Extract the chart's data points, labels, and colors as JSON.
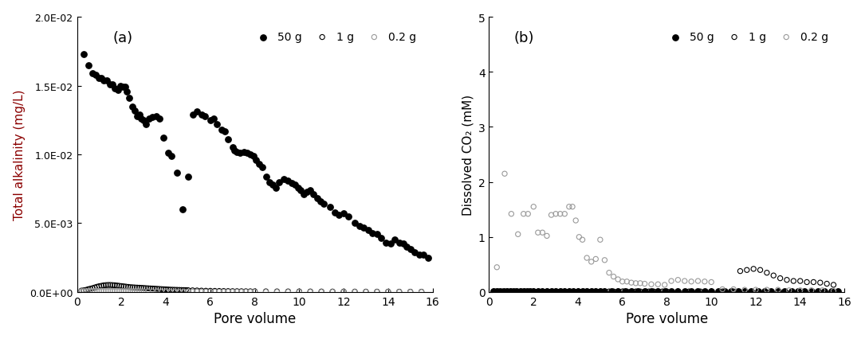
{
  "panel_a_label": "(a)",
  "panel_b_label": "(b)",
  "xlabel": "Pore volume",
  "ylabel_a": "Total alkalinity (mg/L)",
  "ylabel_b": "Dissolved CO₂ (mM)",
  "legend_labels": [
    "50 g",
    "1 g",
    "0.2 g"
  ],
  "xlim": [
    0,
    16
  ],
  "ylim_a": [
    0,
    0.02
  ],
  "ylim_b": [
    0,
    5
  ],
  "yticks_a": [
    0.0,
    0.005,
    0.01,
    0.015,
    0.02
  ],
  "ytick_labels_a": [
    "0.0E+00",
    "5.0E-03",
    "1.0E-02",
    "1.5E-02",
    "2.0E-02"
  ],
  "yticks_b": [
    0,
    1,
    2,
    3,
    4,
    5
  ],
  "a_50g_x": [
    0.3,
    0.5,
    0.7,
    0.85,
    1.0,
    1.1,
    1.2,
    1.35,
    1.5,
    1.6,
    1.7,
    1.85,
    1.95,
    2.05,
    2.15,
    2.25,
    2.35,
    2.5,
    2.6,
    2.7,
    2.8,
    2.9,
    3.0,
    3.1,
    3.25,
    3.4,
    3.55,
    3.7,
    3.9,
    4.1,
    4.25,
    4.5,
    4.75,
    5.0,
    5.2,
    5.4,
    5.6,
    5.75,
    6.0,
    6.15,
    6.3,
    6.5,
    6.65,
    6.8,
    7.0,
    7.1,
    7.2,
    7.35,
    7.5,
    7.65,
    7.8,
    7.95,
    8.05,
    8.2,
    8.35,
    8.5,
    8.65,
    8.8,
    8.95,
    9.1,
    9.3,
    9.5,
    9.65,
    9.8,
    9.95,
    10.05,
    10.2,
    10.35,
    10.5,
    10.65,
    10.8,
    10.95,
    11.1,
    11.4,
    11.6,
    11.8,
    12.0,
    12.2,
    12.5,
    12.7,
    12.9,
    13.1,
    13.3,
    13.5,
    13.7,
    13.9,
    14.1,
    14.3,
    14.5,
    14.7,
    14.85,
    15.0,
    15.2,
    15.4,
    15.6,
    15.8
  ],
  "a_50g_y": [
    0.0173,
    0.0165,
    0.0159,
    0.0158,
    0.01555,
    0.01555,
    0.0154,
    0.0154,
    0.0151,
    0.0151,
    0.0148,
    0.0147,
    0.015,
    0.0149,
    0.0149,
    0.0146,
    0.0141,
    0.0135,
    0.0132,
    0.0128,
    0.0129,
    0.0126,
    0.0125,
    0.0122,
    0.0126,
    0.0127,
    0.0128,
    0.0126,
    0.0112,
    0.0101,
    0.0099,
    0.0087,
    0.006,
    0.0084,
    0.0129,
    0.0131,
    0.0129,
    0.0128,
    0.0125,
    0.0126,
    0.0122,
    0.0118,
    0.0117,
    0.0111,
    0.0105,
    0.0103,
    0.0102,
    0.0101,
    0.0102,
    0.0101,
    0.01,
    0.0099,
    0.0096,
    0.0093,
    0.0091,
    0.0084,
    0.008,
    0.0078,
    0.0076,
    0.008,
    0.0082,
    0.0081,
    0.0079,
    0.0078,
    0.0076,
    0.0074,
    0.0071,
    0.0073,
    0.0074,
    0.0071,
    0.0068,
    0.0066,
    0.0064,
    0.0062,
    0.0058,
    0.0056,
    0.0057,
    0.0055,
    0.005,
    0.0048,
    0.0047,
    0.0045,
    0.0043,
    0.0042,
    0.0039,
    0.0036,
    0.0035,
    0.0038,
    0.0036,
    0.0035,
    0.0033,
    0.0031,
    0.0029,
    0.0027,
    0.0027,
    0.0025
  ],
  "a_1g_x": [
    0.2,
    0.3,
    0.4,
    0.5,
    0.6,
    0.7,
    0.8,
    0.9,
    1.0,
    1.1,
    1.2,
    1.3,
    1.4,
    1.5,
    1.6,
    1.7,
    1.8,
    1.9,
    2.0,
    2.1,
    2.2,
    2.3,
    2.4,
    2.5,
    2.6,
    2.7,
    2.8,
    2.9,
    3.0,
    3.1,
    3.2,
    3.3,
    3.4,
    3.5,
    3.6,
    3.7,
    3.8,
    3.9,
    4.0,
    4.1,
    4.2,
    4.3,
    4.4,
    4.5,
    4.6,
    4.7,
    4.8,
    4.9,
    5.0,
    5.2,
    5.4,
    5.6,
    5.8,
    6.0,
    6.2,
    6.4,
    6.6,
    6.8,
    7.0,
    7.2,
    7.4,
    7.6,
    7.8,
    8.0,
    8.5,
    9.0,
    9.5,
    10.0,
    10.5,
    11.0,
    11.5,
    12.0,
    12.5,
    13.0,
    13.5,
    14.0,
    14.5,
    15.0,
    15.5
  ],
  "a_1g_y": [
    0.0001,
    0.00012,
    0.00015,
    0.0002,
    0.00024,
    0.00028,
    0.00033,
    0.00038,
    0.00042,
    0.00045,
    0.00048,
    0.0005,
    0.00051,
    0.00051,
    0.0005,
    0.00049,
    0.00047,
    0.00045,
    0.00043,
    0.00041,
    0.00039,
    0.00037,
    0.00035,
    0.00034,
    0.00033,
    0.00032,
    0.00031,
    0.0003,
    0.00029,
    0.00028,
    0.00027,
    0.00026,
    0.00025,
    0.00024,
    0.00023,
    0.00022,
    0.00021,
    0.0002,
    0.00019,
    0.00018,
    0.00017,
    0.000165,
    0.00016,
    0.000155,
    0.00015,
    0.000145,
    0.00014,
    0.000135,
    0.00013,
    0.00012,
    0.00011,
    0.0001,
    9e-05,
    8.5e-05,
    8e-05,
    7.5e-05,
    7e-05,
    6.5e-05,
    6e-05,
    5.7e-05,
    5.5e-05,
    5.2e-05,
    5e-05,
    4.8e-05,
    4.5e-05,
    4.2e-05,
    4e-05,
    3.8e-05,
    3.6e-05,
    3.4e-05,
    3.2e-05,
    3e-05,
    2.8e-05,
    2.6e-05,
    2.5e-05,
    2.4e-05,
    2.2e-05,
    2.1e-05,
    2e-05
  ],
  "a_02g_x": [
    0.2,
    0.3,
    0.4,
    0.5,
    0.6,
    0.7,
    0.8,
    0.9,
    1.0,
    1.1,
    1.2,
    1.3,
    1.4,
    1.5,
    1.6,
    1.7,
    1.8,
    1.9,
    2.0,
    2.1,
    2.2,
    2.3,
    2.4,
    2.5,
    2.6,
    2.7,
    2.8,
    2.9,
    3.0,
    3.2,
    3.4,
    3.6,
    3.8,
    4.0,
    4.2,
    4.4,
    4.6,
    4.8,
    5.0,
    5.2,
    5.4,
    5.6,
    5.8,
    6.0,
    6.2,
    6.4,
    6.6,
    6.8,
    7.0,
    7.2,
    7.4,
    7.6,
    7.8,
    8.0,
    8.5,
    9.0,
    9.5,
    10.0,
    10.5,
    11.0,
    11.5,
    12.0,
    12.5,
    13.0,
    13.5,
    14.0,
    14.5,
    15.0,
    15.5
  ],
  "a_02g_y": [
    6e-05,
    5.8e-05,
    6e-05,
    6.2e-05,
    6.4e-05,
    6.6e-05,
    6.8e-05,
    7e-05,
    7.2e-05,
    7.4e-05,
    7.5e-05,
    7.6e-05,
    7.7e-05,
    7.6e-05,
    7.5e-05,
    7.4e-05,
    7.2e-05,
    7e-05,
    6.8e-05,
    6.5e-05,
    6.2e-05,
    6e-05,
    5.8e-05,
    5.5e-05,
    5.3e-05,
    5.1e-05,
    4.9e-05,
    4.7e-05,
    4.5e-05,
    4.3e-05,
    4.1e-05,
    3.9e-05,
    3.7e-05,
    3.5e-05,
    3.3e-05,
    3.1e-05,
    2.9e-05,
    2.8e-05,
    2.7e-05,
    2.6e-05,
    2.5e-05,
    2.4e-05,
    2.3e-05,
    2.2e-05,
    2.1e-05,
    2e-05,
    1.9e-05,
    1.8e-05,
    1.7e-05,
    1.6e-05,
    1.5e-05,
    1.5e-05,
    1.4e-05,
    1.4e-05,
    1.3e-05,
    1.2e-05,
    1.1e-05,
    1e-05,
    1e-05,
    9e-06,
    9e-06,
    8e-06,
    8e-06,
    8e-06,
    8e-06,
    7e-06,
    7e-06,
    7e-06,
    7e-06
  ],
  "b_50g_x": [
    0.2,
    0.35,
    0.5,
    0.65,
    0.8,
    0.95,
    1.1,
    1.25,
    1.4,
    1.55,
    1.7,
    1.85,
    2.0,
    2.2,
    2.4,
    2.6,
    2.8,
    3.0,
    3.2,
    3.4,
    3.6,
    3.8,
    4.0,
    4.2,
    4.4,
    4.6,
    4.8,
    5.0,
    5.2,
    5.5,
    5.8,
    6.1,
    6.4,
    6.7,
    7.0,
    7.3,
    7.6,
    7.9,
    8.2,
    8.5,
    8.8,
    9.1,
    9.4,
    9.7,
    10.0,
    10.3,
    10.6,
    10.9,
    11.2,
    11.5,
    11.8,
    12.1,
    12.4,
    12.7,
    13.0,
    13.3,
    13.6,
    13.9,
    14.2,
    14.5,
    14.8,
    15.1,
    15.4,
    15.7
  ],
  "b_50g_y": [
    0.01,
    0.01,
    0.01,
    0.01,
    0.01,
    0.01,
    0.01,
    0.01,
    0.01,
    0.01,
    0.01,
    0.01,
    0.01,
    0.01,
    0.01,
    0.01,
    0.01,
    0.01,
    0.01,
    0.01,
    0.01,
    0.01,
    0.01,
    0.01,
    0.01,
    0.01,
    0.01,
    0.01,
    0.01,
    0.01,
    0.01,
    0.01,
    0.01,
    0.01,
    0.01,
    0.01,
    0.01,
    0.01,
    0.01,
    0.01,
    0.01,
    0.01,
    0.01,
    0.01,
    0.01,
    0.01,
    0.01,
    0.01,
    0.01,
    0.01,
    0.01,
    0.01,
    0.01,
    0.01,
    0.01,
    0.01,
    0.01,
    0.01,
    0.01,
    0.01,
    0.01,
    0.01,
    0.01,
    0.01
  ],
  "b_1g_x": [
    0.2,
    0.4,
    0.6,
    0.8,
    1.0,
    1.2,
    1.4,
    1.6,
    1.8,
    2.0,
    2.2,
    2.4,
    2.6,
    2.8,
    3.0,
    3.2,
    3.4,
    3.6,
    3.8,
    4.0,
    4.2,
    4.4,
    4.6,
    4.8,
    5.0,
    5.2,
    5.4,
    5.6,
    5.8,
    6.0,
    6.2,
    6.4,
    6.6,
    6.8,
    7.0,
    7.2,
    7.4,
    7.6,
    7.8,
    8.0,
    8.5,
    9.0,
    9.5,
    10.0,
    10.5,
    11.0,
    11.3,
    11.6,
    11.9,
    12.2,
    12.5,
    12.8,
    13.1,
    13.4,
    13.7,
    14.0,
    14.3,
    14.6,
    14.9,
    15.2,
    15.5
  ],
  "b_1g_y": [
    0.01,
    0.01,
    0.01,
    0.01,
    0.01,
    0.01,
    0.01,
    0.01,
    0.01,
    0.01,
    0.01,
    0.01,
    0.01,
    0.01,
    0.01,
    0.01,
    0.01,
    0.01,
    0.01,
    0.01,
    0.01,
    0.01,
    0.01,
    0.01,
    0.01,
    0.01,
    0.01,
    0.01,
    0.01,
    0.01,
    0.01,
    0.01,
    0.01,
    0.01,
    0.01,
    0.01,
    0.01,
    0.01,
    0.01,
    0.01,
    0.01,
    0.01,
    0.01,
    0.01,
    0.01,
    0.01,
    0.38,
    0.4,
    0.42,
    0.4,
    0.35,
    0.3,
    0.25,
    0.22,
    0.2,
    0.2,
    0.18,
    0.18,
    0.17,
    0.15,
    0.13
  ],
  "b_02g_x": [
    0.35,
    0.7,
    1.0,
    1.3,
    1.55,
    1.75,
    2.0,
    2.2,
    2.4,
    2.6,
    2.8,
    3.0,
    3.2,
    3.4,
    3.6,
    3.75,
    3.9,
    4.05,
    4.2,
    4.4,
    4.6,
    4.8,
    5.0,
    5.2,
    5.4,
    5.6,
    5.8,
    6.0,
    6.2,
    6.4,
    6.6,
    6.8,
    7.0,
    7.3,
    7.6,
    7.9,
    8.2,
    8.5,
    8.8,
    9.1,
    9.4,
    9.7,
    10.0,
    10.5,
    11.0,
    11.5,
    12.0,
    12.5,
    13.0,
    13.5,
    14.0,
    14.5,
    15.0,
    15.5
  ],
  "b_02g_y": [
    0.45,
    2.15,
    1.42,
    1.05,
    1.42,
    1.42,
    1.55,
    1.08,
    1.08,
    1.02,
    1.4,
    1.42,
    1.42,
    1.42,
    1.55,
    1.55,
    1.3,
    1.0,
    0.95,
    0.62,
    0.55,
    0.6,
    0.95,
    0.58,
    0.35,
    0.28,
    0.23,
    0.19,
    0.19,
    0.17,
    0.16,
    0.16,
    0.15,
    0.14,
    0.14,
    0.13,
    0.2,
    0.22,
    0.2,
    0.19,
    0.2,
    0.19,
    0.18,
    0.05,
    0.05,
    0.04,
    0.04,
    0.04,
    0.04,
    0.03,
    0.03,
    0.03,
    0.03,
    0.02
  ]
}
